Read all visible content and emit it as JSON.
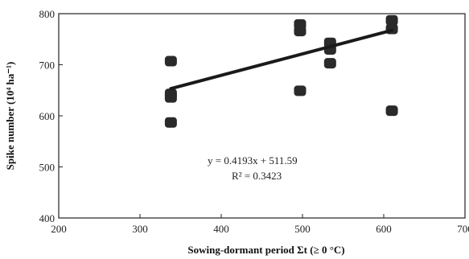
{
  "chart_data": {
    "type": "scatter",
    "title": "",
    "xlabel": "Sowing-dormant period Σt (≥ 0 °C)",
    "ylabel": "Spike number (10⁴ ha⁻¹)",
    "xlim": [
      200,
      700
    ],
    "ylim": [
      400,
      800
    ],
    "x_ticks": [
      200,
      300,
      400,
      500,
      600,
      700
    ],
    "y_ticks": [
      400,
      500,
      600,
      700,
      800
    ],
    "grid": false,
    "legend": "none",
    "marker_color": "#2a2a2a",
    "series": [
      {
        "points": [
          {
            "x": 338,
            "y": 707
          },
          {
            "x": 338,
            "y": 643
          },
          {
            "x": 338,
            "y": 636
          },
          {
            "x": 338,
            "y": 587
          },
          {
            "x": 497,
            "y": 779
          },
          {
            "x": 497,
            "y": 766
          },
          {
            "x": 497,
            "y": 649
          },
          {
            "x": 534,
            "y": 743
          },
          {
            "x": 534,
            "y": 730
          },
          {
            "x": 534,
            "y": 703
          },
          {
            "x": 610,
            "y": 787
          },
          {
            "x": 610,
            "y": 770
          },
          {
            "x": 610,
            "y": 610
          }
        ]
      }
    ],
    "trendline": {
      "slope": 0.4193,
      "intercept": 511.59,
      "x_range": [
        338,
        610
      ],
      "equation_label": "y  = 0.4193x + 511.59",
      "r2_label": "R² = 0.3423"
    }
  }
}
